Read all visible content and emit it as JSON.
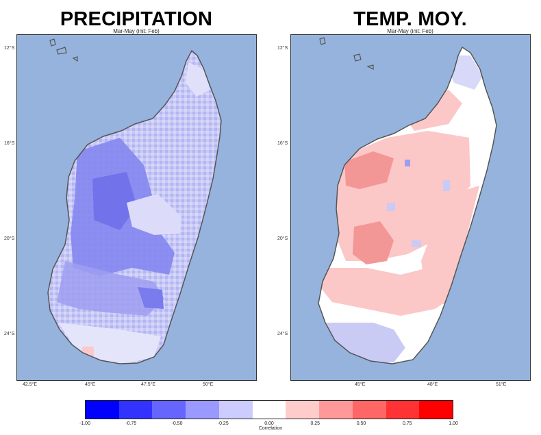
{
  "maps": [
    {
      "title": "PRECIPITATION",
      "subtitle": "Mar-May  (init: Feb)",
      "lat_ticks": [
        "12°S",
        "16°S",
        "20°S",
        "24°S"
      ],
      "lon_ticks": [
        "42.5°E",
        "45°E",
        "47.5°E",
        "50°E"
      ],
      "colors": {
        "ocean": "#95b3dc",
        "land_main": "#c8c9f6",
        "land_strong": "#7b7cee",
        "land_light": "#e4e4fb",
        "land_positive": "#fbc9c9"
      }
    },
    {
      "title": "TEMP. MOY.",
      "subtitle": "Mar-May  (init: Feb)",
      "lat_ticks": [
        "12°S",
        "16°S",
        "20°S",
        "24°S"
      ],
      "lon_ticks": [
        "45°E",
        "48°E",
        "51°E"
      ],
      "colors": {
        "ocean": "#95b3dc",
        "land_main": "#ffffff",
        "land_pink": "#fcc7c7",
        "land_red": "#f39696",
        "land_blue": "#c9cbf5"
      }
    }
  ],
  "colorbar": {
    "label": "Correlation",
    "ticks": [
      "-1.00",
      "-0.75",
      "-0.50",
      "-0.25",
      "0.00",
      "0.25",
      "0.50",
      "0.75",
      "1.00"
    ],
    "colors": [
      "#0000ff",
      "#3333ff",
      "#6666ff",
      "#9999ff",
      "#ccccff",
      "#ffffff",
      "#ffcccc",
      "#ff9999",
      "#ff6666",
      "#ff3333",
      "#ff0000"
    ]
  }
}
